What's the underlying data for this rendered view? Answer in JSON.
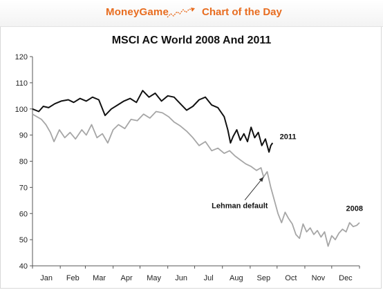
{
  "header": {
    "brand": "MoneyGame",
    "brand_icon": "rising-chart-icon",
    "tagline": "Chart of the Day",
    "accent_color": "#e86c1f"
  },
  "chart_data": {
    "type": "line",
    "title": "MSCI AC World 2008 And 2011",
    "xlabel": "",
    "ylabel": "",
    "xlim": [
      0,
      365
    ],
    "ylim": [
      40,
      120
    ],
    "yticks": [
      40,
      50,
      60,
      70,
      80,
      90,
      100,
      110,
      120
    ],
    "month_labels": [
      "Jan",
      "Feb",
      "Mar",
      "Apr",
      "May",
      "Jun",
      "Jul",
      "Aug",
      "Sep",
      "Oct",
      "Nov",
      "Dec"
    ],
    "grid": false,
    "legend": "none",
    "series": [
      {
        "name": "2011",
        "color": "#111111",
        "x": [
          0,
          7,
          12,
          18,
          25,
          32,
          40,
          46,
          53,
          60,
          67,
          74,
          81,
          88,
          95,
          102,
          109,
          116,
          123,
          130,
          137,
          144,
          151,
          158,
          165,
          172,
          179,
          186,
          193,
          200,
          207,
          214,
          218,
          221,
          224,
          228,
          232,
          236,
          240,
          244,
          248,
          252,
          256,
          260,
          264,
          266,
          268
        ],
        "y": [
          100,
          99,
          101,
          100.5,
          102,
          103,
          103.5,
          102.5,
          104,
          103,
          104.5,
          103.5,
          97.5,
          100,
          101.5,
          103,
          104,
          102.5,
          107,
          104.5,
          106,
          103,
          105,
          104.5,
          102,
          99.5,
          101,
          103.5,
          104.5,
          101.5,
          100.5,
          97,
          92,
          87,
          89.5,
          92,
          88,
          90.5,
          87.5,
          93,
          89,
          91,
          86,
          88.5,
          83.5,
          86,
          87
        ]
      },
      {
        "name": "2008",
        "color": "#a6a6a6",
        "x": [
          0,
          5,
          10,
          15,
          20,
          24,
          30,
          36,
          42,
          48,
          55,
          60,
          66,
          72,
          78,
          84,
          90,
          96,
          103,
          110,
          117,
          124,
          131,
          138,
          145,
          152,
          158,
          165,
          172,
          179,
          186,
          193,
          200,
          207,
          214,
          220,
          226,
          232,
          238,
          244,
          250,
          255,
          258,
          262,
          266,
          270,
          274,
          278,
          282,
          286,
          290,
          294,
          298,
          302,
          306,
          310,
          314,
          318,
          322,
          326,
          330,
          334,
          338,
          342,
          346,
          350,
          354,
          358,
          362,
          365
        ],
        "y": [
          98,
          97,
          96,
          94,
          91,
          87.5,
          92,
          89,
          91,
          88.5,
          92,
          90,
          94,
          89,
          90.5,
          87,
          92,
          94,
          92.5,
          96,
          95.5,
          98,
          96.5,
          99,
          98.5,
          97,
          95,
          93.5,
          91.5,
          89,
          86,
          87.5,
          84,
          85,
          83,
          84,
          82,
          80.5,
          79,
          78,
          76.5,
          77.5,
          74,
          76,
          70,
          65,
          60,
          56.5,
          60.5,
          58,
          56,
          52,
          50.5,
          56,
          53,
          54.5,
          52,
          53.5,
          51,
          53,
          47.5,
          51.5,
          50,
          52.5,
          54,
          53,
          56.5,
          55,
          55.5,
          56.5
        ]
      }
    ],
    "annotations": [
      {
        "text": "2011",
        "x": 276,
        "y": 88.5
      },
      {
        "text": "2008",
        "x": 350,
        "y": 61
      },
      {
        "text": "Lehman default",
        "x": 200,
        "y": 62,
        "arrow_to": [
          258,
          74
        ]
      }
    ]
  }
}
